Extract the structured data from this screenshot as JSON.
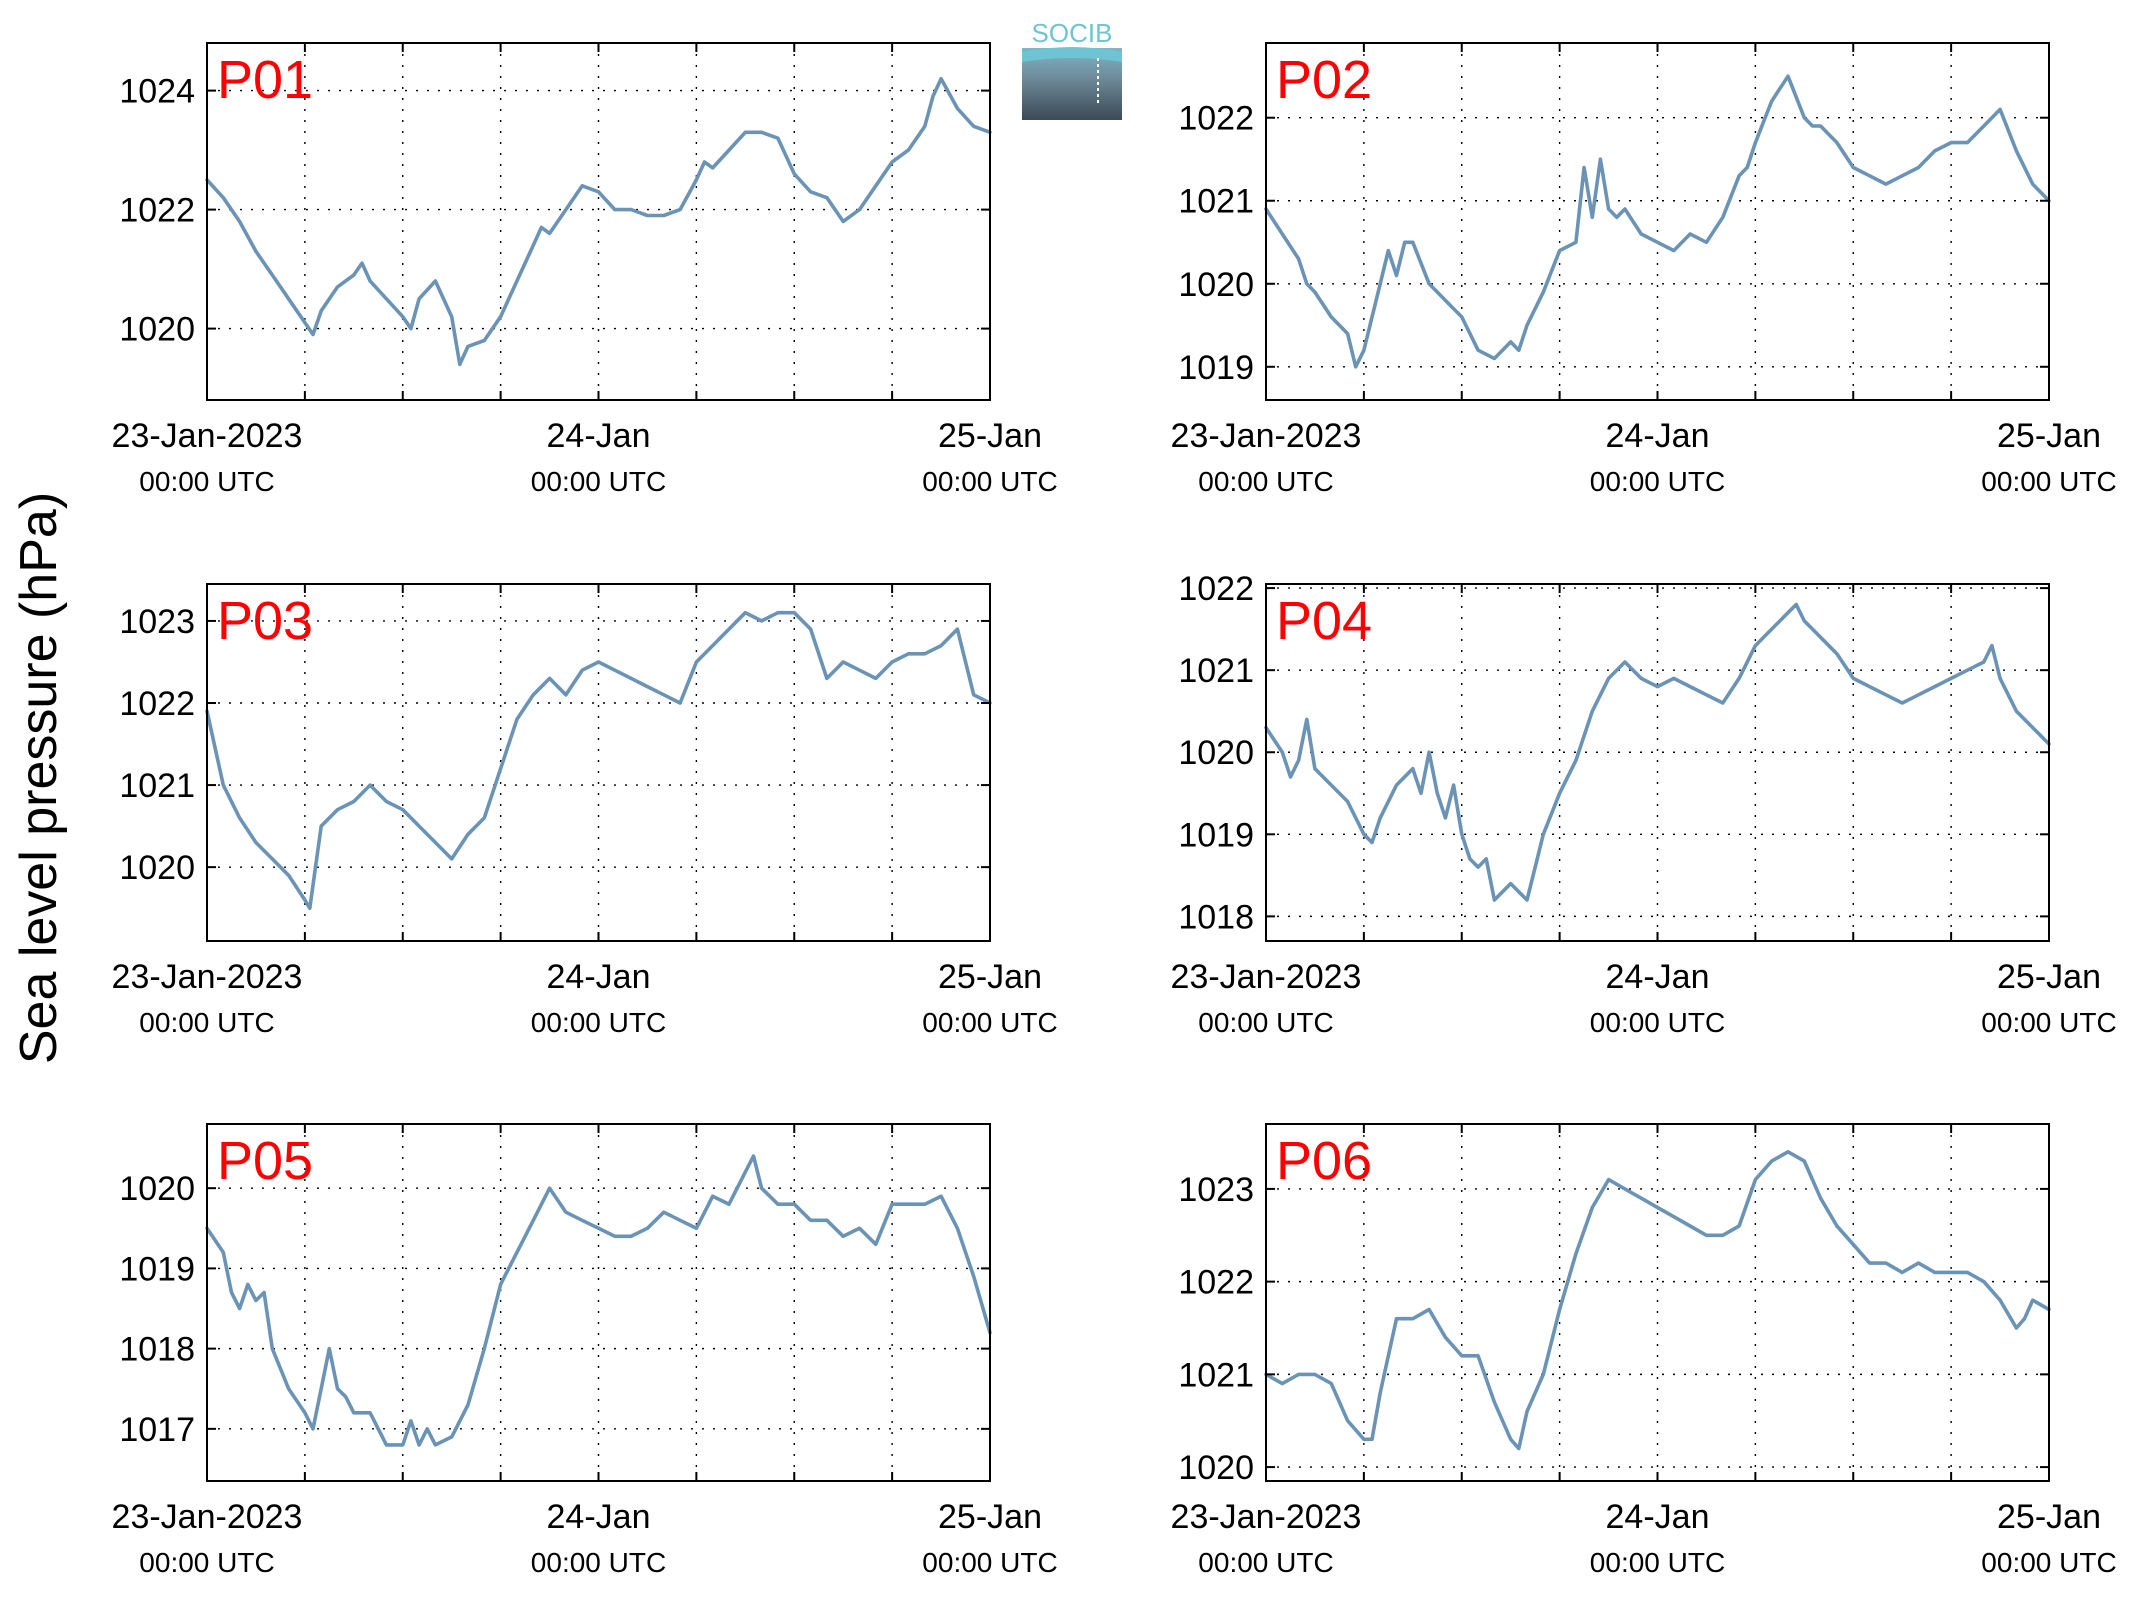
{
  "figure": {
    "ylabel": "Sea level pressure (hPa)",
    "logo_text": "SOCIB",
    "colors": {
      "line": "#6a93b6",
      "panel_label": "#ff0000",
      "axis": "#000000",
      "grid": "#000000"
    }
  },
  "chart_data": [
    {
      "type": "line",
      "title": "P01",
      "ylim": [
        1018.8,
        1024.8
      ],
      "yticks": [
        1020,
        1022,
        1024
      ],
      "xlim": [
        0,
        48
      ],
      "x_ticks_major": [
        0,
        24,
        48
      ],
      "x_ticks_minor": [
        6,
        12,
        18,
        30,
        36,
        42
      ],
      "xtick_labels": [
        [
          "23-Jan-2023",
          "00:00 UTC"
        ],
        [
          "24-Jan",
          "00:00 UTC"
        ],
        [
          "25-Jan",
          "00:00 UTC"
        ]
      ],
      "grid": true,
      "series": [
        {
          "x": [
            0,
            1,
            2,
            3,
            4,
            5,
            6,
            6.5,
            7,
            8,
            9,
            9.5,
            10,
            11,
            12,
            12.5,
            13,
            14,
            15,
            15.5,
            16,
            17,
            18,
            19,
            20,
            20.5,
            21,
            22,
            23,
            24,
            25,
            26,
            27,
            28,
            29,
            30,
            30.5,
            31,
            32,
            33,
            34,
            35,
            36,
            37,
            38,
            39,
            40,
            41,
            42,
            43,
            44,
            44.5,
            45,
            46,
            47,
            48
          ],
          "y": [
            1022.5,
            1022.2,
            1021.8,
            1021.3,
            1020.9,
            1020.5,
            1020.1,
            1019.9,
            1020.3,
            1020.7,
            1020.9,
            1021.1,
            1020.8,
            1020.5,
            1020.2,
            1020.0,
            1020.5,
            1020.8,
            1020.2,
            1019.4,
            1019.7,
            1019.8,
            1020.2,
            1020.8,
            1021.4,
            1021.7,
            1021.6,
            1022.0,
            1022.4,
            1022.3,
            1022.0,
            1022.0,
            1021.9,
            1021.9,
            1022.0,
            1022.5,
            1022.8,
            1022.7,
            1023.0,
            1023.3,
            1023.3,
            1023.2,
            1022.6,
            1022.3,
            1022.2,
            1021.8,
            1022.0,
            1022.4,
            1022.8,
            1023.0,
            1023.4,
            1023.9,
            1024.2,
            1023.7,
            1023.4,
            1023.3
          ]
        }
      ]
    },
    {
      "type": "line",
      "title": "P02",
      "ylim": [
        1018.6,
        1022.9
      ],
      "yticks": [
        1019,
        1020,
        1021,
        1022
      ],
      "xlim": [
        0,
        48
      ],
      "x_ticks_major": [
        0,
        24,
        48
      ],
      "x_ticks_minor": [
        6,
        12,
        18,
        30,
        36,
        42
      ],
      "xtick_labels": [
        [
          "23-Jan-2023",
          "00:00 UTC"
        ],
        [
          "24-Jan",
          "00:00 UTC"
        ],
        [
          "25-Jan",
          "00:00 UTC"
        ]
      ],
      "grid": true,
      "series": [
        {
          "x": [
            0,
            1,
            2,
            2.5,
            3,
            4,
            5,
            5.5,
            6,
            7,
            7.5,
            8,
            8.5,
            9,
            10,
            11,
            12,
            13,
            14,
            15,
            15.5,
            16,
            17,
            18,
            19,
            19.5,
            20,
            20.5,
            21,
            21.5,
            22,
            23,
            24,
            25,
            26,
            27,
            28,
            29,
            29.5,
            30,
            31,
            32,
            33,
            33.5,
            34,
            35,
            36,
            37,
            38,
            39,
            40,
            41,
            42,
            43,
            44,
            44.5,
            45,
            46,
            47,
            48
          ],
          "y": [
            1020.9,
            1020.6,
            1020.3,
            1020.0,
            1019.9,
            1019.6,
            1019.4,
            1019.0,
            1019.2,
            1020.0,
            1020.4,
            1020.1,
            1020.5,
            1020.5,
            1020.0,
            1019.8,
            1019.6,
            1019.2,
            1019.1,
            1019.3,
            1019.2,
            1019.5,
            1019.9,
            1020.4,
            1020.5,
            1021.4,
            1020.8,
            1021.5,
            1020.9,
            1020.8,
            1020.9,
            1020.6,
            1020.5,
            1020.4,
            1020.6,
            1020.5,
            1020.8,
            1021.3,
            1021.4,
            1021.7,
            1022.2,
            1022.5,
            1022.0,
            1021.9,
            1021.9,
            1021.7,
            1021.4,
            1021.3,
            1021.2,
            1021.3,
            1021.4,
            1021.6,
            1021.7,
            1021.7,
            1021.9,
            1022.0,
            1022.1,
            1021.6,
            1021.2,
            1021.0
          ]
        }
      ]
    },
    {
      "type": "line",
      "title": "P03",
      "ylim": [
        1019.1,
        1023.45
      ],
      "yticks": [
        1020,
        1021,
        1022,
        1023
      ],
      "xlim": [
        0,
        48
      ],
      "x_ticks_major": [
        0,
        24,
        48
      ],
      "x_ticks_minor": [
        6,
        12,
        18,
        30,
        36,
        42
      ],
      "xtick_labels": [
        [
          "23-Jan-2023",
          "00:00 UTC"
        ],
        [
          "24-Jan",
          "00:00 UTC"
        ],
        [
          "25-Jan",
          "00:00 UTC"
        ]
      ],
      "grid": true,
      "series": [
        {
          "x": [
            0,
            1,
            2,
            3,
            4,
            5,
            6,
            6.3,
            7,
            8,
            9,
            10,
            11,
            12,
            13,
            14,
            15,
            16,
            17,
            18,
            19,
            20,
            21,
            22,
            23,
            24,
            25,
            26,
            27,
            28,
            29,
            30,
            31,
            32,
            33,
            34,
            35,
            36,
            37,
            38,
            39,
            40,
            41,
            42,
            43,
            44,
            45,
            46,
            47,
            48
          ],
          "y": [
            1021.9,
            1021.0,
            1020.6,
            1020.3,
            1020.1,
            1019.9,
            1019.6,
            1019.5,
            1020.5,
            1020.7,
            1020.8,
            1021.0,
            1020.8,
            1020.7,
            1020.5,
            1020.3,
            1020.1,
            1020.4,
            1020.6,
            1021.2,
            1021.8,
            1022.1,
            1022.3,
            1022.1,
            1022.4,
            1022.5,
            1022.4,
            1022.3,
            1022.2,
            1022.1,
            1022.0,
            1022.5,
            1022.7,
            1022.9,
            1023.1,
            1023.0,
            1023.1,
            1023.1,
            1022.9,
            1022.3,
            1022.5,
            1022.4,
            1022.3,
            1022.5,
            1022.6,
            1022.6,
            1022.7,
            1022.9,
            1022.1,
            1022.0
          ]
        }
      ]
    },
    {
      "type": "line",
      "title": "P04",
      "ylim": [
        1017.7,
        1022.05
      ],
      "yticks": [
        1018,
        1019,
        1020,
        1021,
        1022
      ],
      "xlim": [
        0,
        48
      ],
      "x_ticks_major": [
        0,
        24,
        48
      ],
      "x_ticks_minor": [
        6,
        12,
        18,
        30,
        36,
        42
      ],
      "xtick_labels": [
        [
          "23-Jan-2023",
          "00:00 UTC"
        ],
        [
          "24-Jan",
          "00:00 UTC"
        ],
        [
          "25-Jan",
          "00:00 UTC"
        ]
      ],
      "grid": true,
      "series": [
        {
          "x": [
            0,
            1,
            1.5,
            2,
            2.5,
            3,
            4,
            5,
            6,
            6.5,
            7,
            8,
            9,
            9.5,
            10,
            10.5,
            11,
            11.5,
            12,
            12.5,
            13,
            13.5,
            14,
            14.5,
            15,
            15.5,
            16,
            16.5,
            17,
            18,
            19,
            20,
            21,
            22,
            23,
            24,
            25,
            26,
            27,
            28,
            29,
            30,
            31,
            32,
            32.5,
            33,
            34,
            35,
            36,
            37,
            38,
            39,
            40,
            41,
            42,
            43,
            44,
            44.5,
            45,
            46,
            47,
            48
          ],
          "y": [
            1020.3,
            1020.0,
            1019.7,
            1019.9,
            1020.4,
            1019.8,
            1019.6,
            1019.4,
            1019.0,
            1018.9,
            1019.2,
            1019.6,
            1019.8,
            1019.5,
            1020.0,
            1019.5,
            1019.2,
            1019.6,
            1019.0,
            1018.7,
            1018.6,
            1018.7,
            1018.2,
            1018.3,
            1018.4,
            1018.3,
            1018.2,
            1018.6,
            1019.0,
            1019.5,
            1019.9,
            1020.5,
            1020.9,
            1021.1,
            1020.9,
            1020.8,
            1020.9,
            1020.8,
            1020.7,
            1020.6,
            1020.9,
            1021.3,
            1021.5,
            1021.7,
            1021.8,
            1021.6,
            1021.4,
            1021.2,
            1020.9,
            1020.8,
            1020.7,
            1020.6,
            1020.7,
            1020.8,
            1020.9,
            1021.0,
            1021.1,
            1021.3,
            1020.9,
            1020.5,
            1020.3,
            1020.1
          ]
        }
      ]
    },
    {
      "type": "line",
      "title": "P05",
      "ylim": [
        1016.35,
        1020.8
      ],
      "yticks": [
        1017,
        1018,
        1019,
        1020
      ],
      "xlim": [
        0,
        48
      ],
      "x_ticks_major": [
        0,
        24,
        48
      ],
      "x_ticks_minor": [
        6,
        12,
        18,
        30,
        36,
        42
      ],
      "xtick_labels": [
        [
          "23-Jan-2023",
          "00:00 UTC"
        ],
        [
          "24-Jan",
          "00:00 UTC"
        ],
        [
          "25-Jan",
          "00:00 UTC"
        ]
      ],
      "grid": true,
      "series": [
        {
          "x": [
            0,
            1,
            1.5,
            2,
            2.5,
            3,
            3.5,
            4,
            5,
            6,
            6.5,
            7,
            7.5,
            8,
            8.5,
            9,
            10,
            11,
            12,
            12.5,
            13,
            13.5,
            14,
            15,
            16,
            17,
            18,
            19,
            20,
            21,
            22,
            23,
            24,
            25,
            26,
            27,
            28,
            29,
            30,
            31,
            32,
            33,
            33.5,
            34,
            35,
            36,
            37,
            38,
            39,
            40,
            41,
            42,
            43,
            44,
            45,
            46,
            47,
            48
          ],
          "y": [
            1019.5,
            1019.2,
            1018.7,
            1018.5,
            1018.8,
            1018.6,
            1018.7,
            1018.0,
            1017.5,
            1017.2,
            1017.0,
            1017.5,
            1018.0,
            1017.5,
            1017.4,
            1017.2,
            1017.2,
            1016.8,
            1016.8,
            1017.1,
            1016.8,
            1017.0,
            1016.8,
            1016.9,
            1017.3,
            1018.0,
            1018.8,
            1019.2,
            1019.6,
            1020.0,
            1019.7,
            1019.6,
            1019.5,
            1019.4,
            1019.4,
            1019.5,
            1019.7,
            1019.6,
            1019.5,
            1019.9,
            1019.8,
            1020.2,
            1020.4,
            1020.0,
            1019.8,
            1019.8,
            1019.6,
            1019.6,
            1019.4,
            1019.5,
            1019.3,
            1019.8,
            1019.8,
            1019.8,
            1019.9,
            1019.5,
            1018.9,
            1018.2
          ]
        }
      ]
    },
    {
      "type": "line",
      "title": "P06",
      "ylim": [
        1019.85,
        1023.7
      ],
      "yticks": [
        1020,
        1021,
        1022,
        1023
      ],
      "xlim": [
        0,
        48
      ],
      "x_ticks_major": [
        0,
        24,
        48
      ],
      "x_ticks_minor": [
        6,
        12,
        18,
        30,
        36,
        42
      ],
      "xtick_labels": [
        [
          "23-Jan-2023",
          "00:00 UTC"
        ],
        [
          "24-Jan",
          "00:00 UTC"
        ],
        [
          "25-Jan",
          "00:00 UTC"
        ]
      ],
      "grid": true,
      "series": [
        {
          "x": [
            0,
            1,
            2,
            3,
            4,
            5,
            6,
            6.5,
            7,
            8,
            9,
            10,
            11,
            12,
            13,
            14,
            15,
            15.5,
            16,
            17,
            18,
            19,
            20,
            21,
            22,
            23,
            24,
            25,
            26,
            27,
            28,
            29,
            30,
            31,
            32,
            33,
            34,
            35,
            36,
            37,
            38,
            39,
            40,
            41,
            42,
            43,
            44,
            45,
            46,
            46.5,
            47,
            48
          ],
          "y": [
            1021.0,
            1020.9,
            1021.0,
            1021.0,
            1020.9,
            1020.5,
            1020.3,
            1020.3,
            1020.8,
            1021.6,
            1021.6,
            1021.7,
            1021.4,
            1021.2,
            1021.2,
            1020.7,
            1020.3,
            1020.2,
            1020.6,
            1021.0,
            1021.7,
            1022.3,
            1022.8,
            1023.1,
            1023.0,
            1022.9,
            1022.8,
            1022.7,
            1022.6,
            1022.5,
            1022.5,
            1022.6,
            1023.1,
            1023.3,
            1023.4,
            1023.3,
            1022.9,
            1022.6,
            1022.4,
            1022.2,
            1022.2,
            1022.1,
            1022.2,
            1022.1,
            1022.1,
            1022.1,
            1022.0,
            1021.8,
            1021.5,
            1021.6,
            1021.8,
            1021.7
          ]
        }
      ]
    }
  ]
}
